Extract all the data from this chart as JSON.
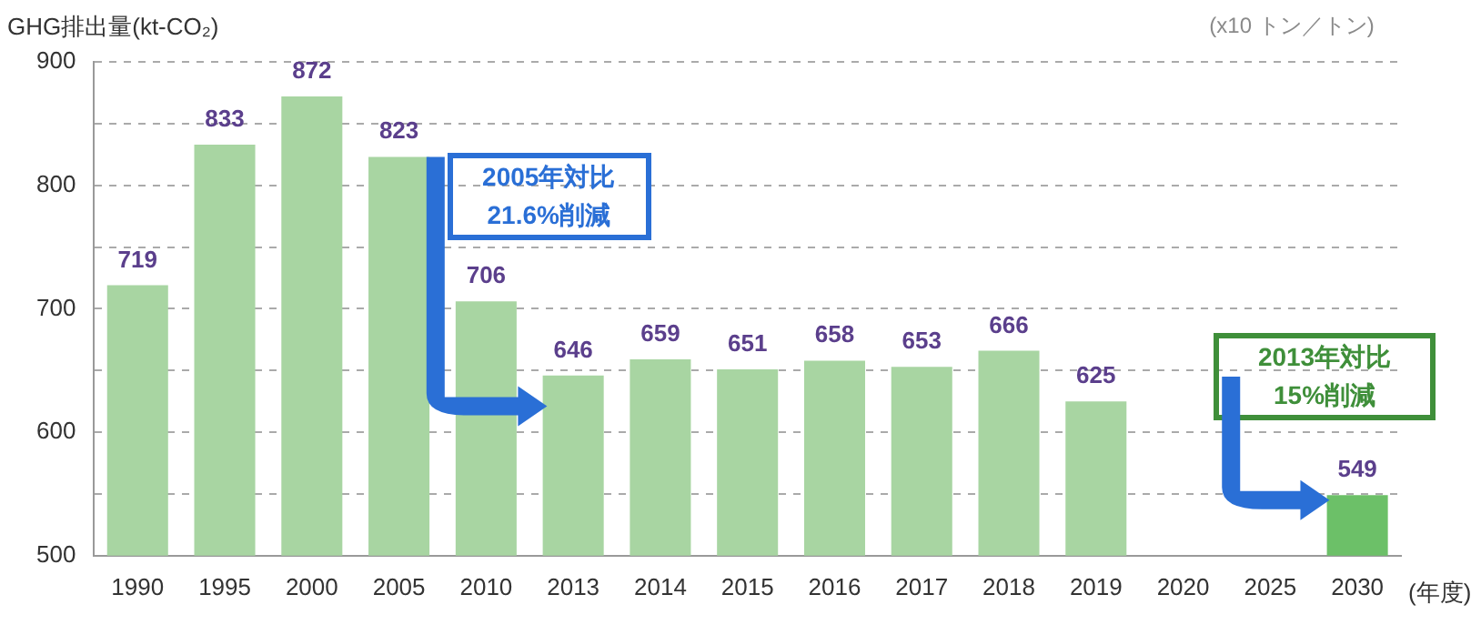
{
  "chart_data": {
    "type": "bar",
    "ylabel": "GHG排出量(kt-CO₂)",
    "xlabel": "(年度)",
    "categories": [
      "1990",
      "1995",
      "2000",
      "2005",
      "2010",
      "2013",
      "2014",
      "2015",
      "2016",
      "2017",
      "2018",
      "2019",
      "2020",
      "2025",
      "2030"
    ],
    "values": [
      719,
      833,
      872,
      823,
      706,
      646,
      659,
      651,
      658,
      653,
      666,
      625,
      null,
      null,
      549
    ],
    "colors": [
      "#a8d5a2",
      "#a8d5a2",
      "#a8d5a2",
      "#a8d5a2",
      "#a8d5a2",
      "#a8d5a2",
      "#a8d5a2",
      "#a8d5a2",
      "#a8d5a2",
      "#a8d5a2",
      "#a8d5a2",
      "#a8d5a2",
      "#a8d5a2",
      "#a8d5a2",
      "#6cc068"
    ],
    "data_labels": true,
    "ylim": [
      500,
      900
    ],
    "yticks": [
      500,
      {
        "value": 550,
        "label": null
      },
      600,
      {
        "value": 650,
        "label": null
      },
      700,
      {
        "value": 750,
        "label": null
      },
      800,
      {
        "value": 850,
        "label": null
      },
      900
    ],
    "grid": "y",
    "annotations": [
      "2005年対比\n21.6%削減",
      "2013年対比\n15%削減",
      "(x10 トン／トン)"
    ]
  }
}
